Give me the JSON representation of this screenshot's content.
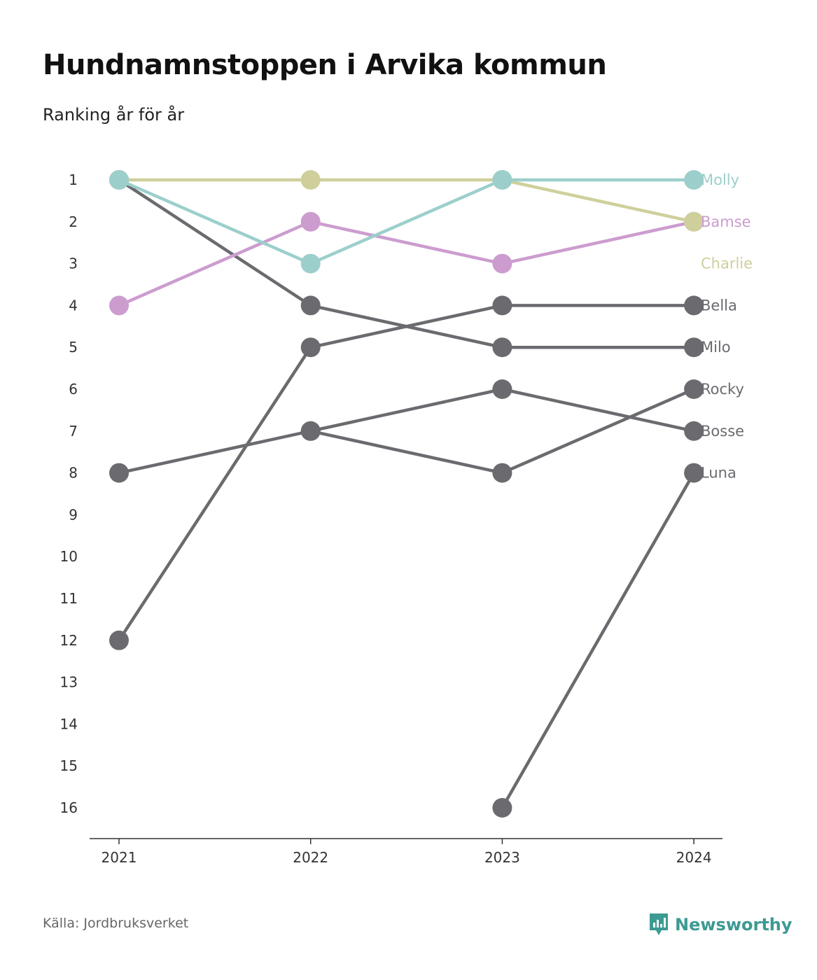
{
  "title": "Hundnamnstoppen i Arvika kommun",
  "subtitle": "Ranking år för år",
  "source": "Källa: Jordbruksverket",
  "brand": "Newsworthy",
  "colors": {
    "molly": "#9ccfcc",
    "bamse": "#cc9ccf",
    "charlie": "#cfcf9c",
    "other": "#6b6a6f",
    "brand": "#3d9a93"
  },
  "chart_data": {
    "type": "line",
    "x": [
      "2021",
      "2022",
      "2023",
      "2024"
    ],
    "y_ticks": [
      1,
      2,
      3,
      4,
      5,
      6,
      7,
      8,
      9,
      10,
      11,
      12,
      13,
      14,
      15,
      16
    ],
    "ylim": [
      1,
      16
    ],
    "y_inverted": true,
    "grid": false,
    "series": [
      {
        "name": "Bella",
        "values": [
          12,
          5,
          4,
          4
        ],
        "color": "#6b6a6f"
      },
      {
        "name": "Milo",
        "values": [
          1,
          4,
          5,
          5
        ],
        "color": "#6b6a6f"
      },
      {
        "name": "Rocky",
        "values": [
          null,
          7,
          8,
          6
        ],
        "color": "#6b6a6f"
      },
      {
        "name": "Bosse",
        "values": [
          8,
          7,
          6,
          7
        ],
        "color": "#6b6a6f"
      },
      {
        "name": "Luna",
        "values": [
          null,
          null,
          16,
          8
        ],
        "color": "#6b6a6f"
      },
      {
        "name": "Bamse",
        "values": [
          4,
          2,
          3,
          2
        ],
        "color": "#cc9ccf"
      },
      {
        "name": "Charlie",
        "values": [
          1,
          1,
          1,
          2
        ],
        "color": "#cfcf9c"
      },
      {
        "name": "Molly",
        "values": [
          1,
          3,
          1,
          1
        ],
        "color": "#9ccfcc"
      }
    ]
  }
}
